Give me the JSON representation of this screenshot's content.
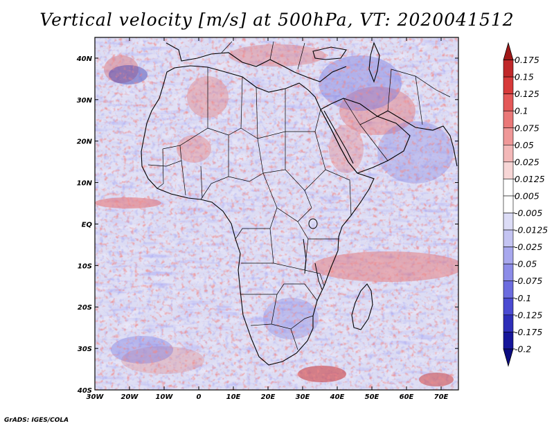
{
  "title": "Vertical velocity [m/s] at 500hPa, VT: 2020041512",
  "credit": "GrADS: IGES/COLA",
  "map": {
    "lon_range": [
      -30,
      75
    ],
    "lat_range": [
      -40,
      45
    ],
    "lon_ticks": [
      "30W",
      "20W",
      "10W",
      "0",
      "10E",
      "20E",
      "30E",
      "40E",
      "50E",
      "60E",
      "70E"
    ],
    "lat_ticks": [
      "40S",
      "30S",
      "20S",
      "10S",
      "EQ",
      "10N",
      "20N",
      "30N",
      "40N"
    ]
  },
  "colorbar": {
    "labels": [
      "0.175",
      "0.15",
      "0.125",
      "0.1",
      "0.075",
      "0.05",
      "0.025",
      "0.0125",
      "0.005",
      "-0.005",
      "-0.0125",
      "-0.025",
      "-0.05",
      "-0.075",
      "-0.1",
      "-0.125",
      "-0.175",
      "-0.2"
    ],
    "colors": [
      "#a01818",
      "#c0282a",
      "#d73a3a",
      "#e45858",
      "#ea7878",
      "#ef9898",
      "#f3b8b8",
      "#f7d6d6",
      "#ffffff",
      "#ffffff",
      "#dcdcf6",
      "#c4c4f2",
      "#a8a8ee",
      "#8c8ce8",
      "#6c6cdf",
      "#4b4bd2",
      "#2e2eb8",
      "#16169a",
      "#0c0c80"
    ]
  }
}
